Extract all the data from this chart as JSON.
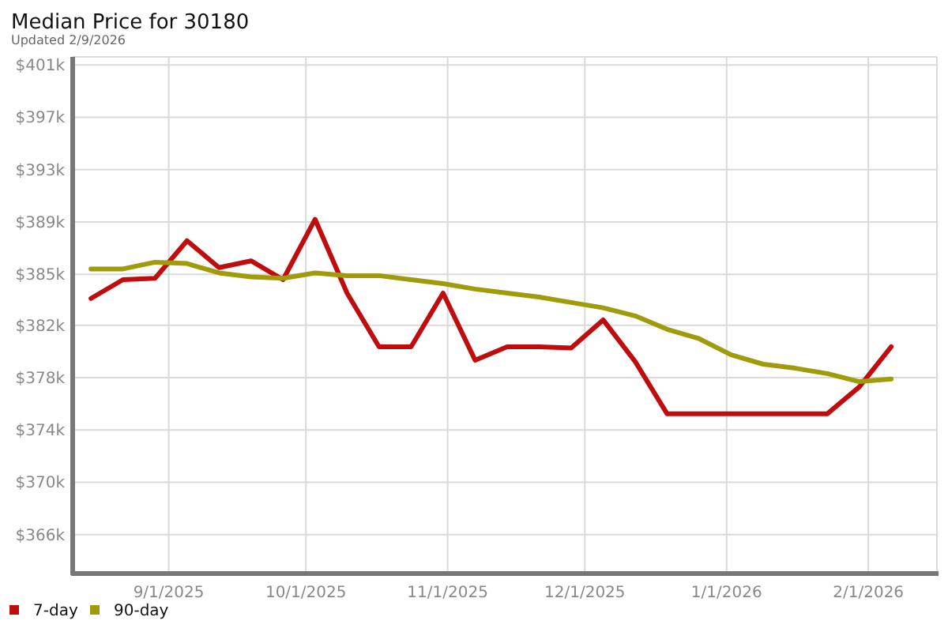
{
  "chart_data": {
    "type": "line",
    "title": "Median Price for 30180",
    "subtitle": "Updated 2/9/2026",
    "x": [
      "2025-08-15",
      "2025-08-22",
      "2025-08-29",
      "2025-09-05",
      "2025-09-12",
      "2025-09-19",
      "2025-09-26",
      "2025-10-03",
      "2025-10-10",
      "2025-10-17",
      "2025-10-24",
      "2025-10-31",
      "2025-11-07",
      "2025-11-14",
      "2025-11-21",
      "2025-11-28",
      "2025-12-05",
      "2025-12-12",
      "2025-12-19",
      "2025-12-26",
      "2026-01-02",
      "2026-01-09",
      "2026-01-16",
      "2026-01-23",
      "2026-01-30",
      "2026-02-06"
    ],
    "series": [
      {
        "name": "7-day",
        "color": "#c00c0c",
        "values": [
          383.6,
          385.0,
          385.1,
          387.9,
          385.9,
          386.4,
          385.0,
          389.5,
          384.0,
          380.0,
          380.0,
          384.0,
          379.0,
          380.0,
          380.0,
          379.9,
          382.0,
          378.9,
          375.0,
          375.0,
          375.0,
          375.0,
          375.0,
          375.0,
          377.0,
          380.0
        ]
      },
      {
        "name": "90-day",
        "color": "#a09b0a",
        "values": [
          385.8,
          385.8,
          386.3,
          386.2,
          385.5,
          385.2,
          385.1,
          385.5,
          385.3,
          385.3,
          385.0,
          384.7,
          384.3,
          384.0,
          383.7,
          383.3,
          382.9,
          382.3,
          381.3,
          380.6,
          379.4,
          378.7,
          378.4,
          378.0,
          377.4,
          377.6
        ]
      }
    ],
    "xlim": [
      "2025-08-11",
      "2026-02-16"
    ],
    "xticks": [
      {
        "value": "2025-09-01",
        "label": "9/1/2025"
      },
      {
        "value": "2025-10-01",
        "label": "10/1/2025"
      },
      {
        "value": "2025-11-01",
        "label": "11/1/2025"
      },
      {
        "value": "2025-12-01",
        "label": "12/1/2025"
      },
      {
        "value": "2026-01-01",
        "label": "1/1/2026"
      },
      {
        "value": "2026-02-01",
        "label": "2/1/2026"
      }
    ],
    "ylim": [
      363.1,
      401.6
    ],
    "yticks": [
      {
        "value": 366,
        "label": "$366k"
      },
      {
        "value": 369.9,
        "label": "$370k"
      },
      {
        "value": 373.8,
        "label": "$374k"
      },
      {
        "value": 377.7,
        "label": "$378k"
      },
      {
        "value": 381.6,
        "label": "$382k"
      },
      {
        "value": 385.4,
        "label": "$385k"
      },
      {
        "value": 389.3,
        "label": "$389k"
      },
      {
        "value": 393.2,
        "label": "$393k"
      },
      {
        "value": 397.1,
        "label": "$397k"
      },
      {
        "value": 401,
        "label": "$401k"
      }
    ],
    "grid": true,
    "legend": "bottom left",
    "line_style": "solid",
    "marker": "none"
  }
}
